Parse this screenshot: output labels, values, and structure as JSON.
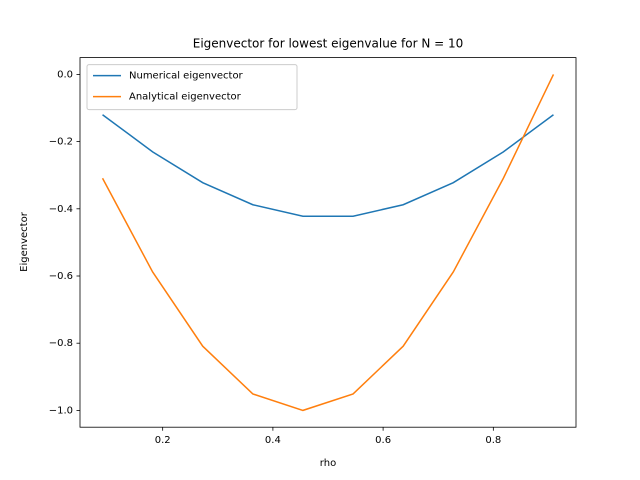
{
  "chart_data": {
    "type": "line",
    "title": "Eigenvector for lowest eigenvalue for N = 10",
    "xlabel": "rho",
    "ylabel": "Eigenvector",
    "x": [
      0.0909,
      0.1818,
      0.2727,
      0.3636,
      0.4545,
      0.5455,
      0.6364,
      0.7273,
      0.8182,
      0.9091
    ],
    "series": [
      {
        "name": "Numerical eigenvector",
        "color": "#1f77b4",
        "values": [
          -0.12,
          -0.2305,
          -0.3222,
          -0.3879,
          -0.4221,
          -0.4221,
          -0.3879,
          -0.3222,
          -0.2305,
          -0.12
        ]
      },
      {
        "name": "Analytical eigenvector",
        "color": "#ff7f0e",
        "values": [
          -0.309,
          -0.588,
          -0.809,
          -0.951,
          -1.0,
          -0.951,
          -0.809,
          -0.588,
          -0.309,
          0.0
        ]
      }
    ],
    "xlim": [
      0.05,
      0.95
    ],
    "ylim": [
      -1.05,
      0.05
    ],
    "xticks": [
      0.2,
      0.4,
      0.6,
      0.8
    ],
    "yticks": [
      {
        "value": -1.0,
        "label": "−1.0"
      },
      {
        "value": -0.8,
        "label": "−0.8"
      },
      {
        "value": -0.6,
        "label": "−0.6"
      },
      {
        "value": -0.4,
        "label": "−0.4"
      },
      {
        "value": -0.2,
        "label": "−0.2"
      },
      {
        "value": 0.0,
        "label": "0.0"
      }
    ],
    "legend": "upper left",
    "grid": false
  }
}
